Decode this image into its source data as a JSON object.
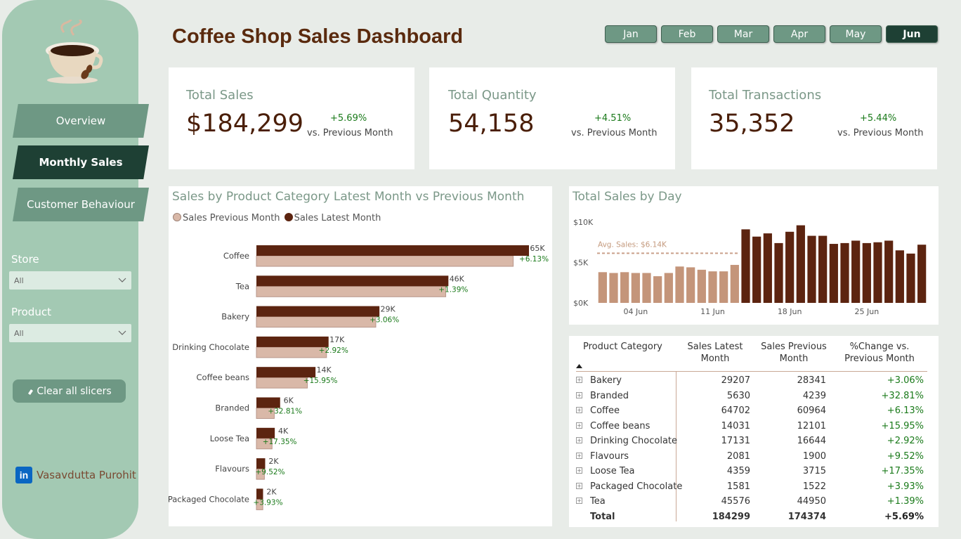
{
  "title": "Coffee Shop Sales Dashboard",
  "nav": {
    "overview": "Overview",
    "monthly": "Monthly Sales",
    "customer": "Customer Behaviour"
  },
  "filters": {
    "store_label": "Store",
    "store_value": "All",
    "product_label": "Product",
    "product_value": "All",
    "clear_label": "Clear all slicers"
  },
  "author": "Vasavdutta Purohit",
  "months": [
    "Jan",
    "Feb",
    "Mar",
    "Apr",
    "May",
    "Jun"
  ],
  "active_month": "Jun",
  "kpis": {
    "sales": {
      "title": "Total Sales",
      "value": "$184,299",
      "change": "+5.69%",
      "sub": "vs. Previous Month"
    },
    "quantity": {
      "title": "Total Quantity",
      "value": "54,158",
      "change": "+4.51%",
      "sub": "vs. Previous Month"
    },
    "transactions": {
      "title": "Total Transactions",
      "value": "35,352",
      "change": "+5.44%",
      "sub": "vs. Previous Month"
    }
  },
  "colors": {
    "latest": "#5c2410",
    "previous": "#d9b8a8",
    "previous_stroke": "#b8968a",
    "day_current": "#5c2410",
    "day_previous": "#c4957a",
    "sidebar": "#a3c9b3",
    "positive": "#1a7a1a"
  },
  "category_chart": {
    "title": "Sales by Product Category Latest Month vs Previous Month",
    "legend_previous": "Sales Previous Month",
    "legend_latest": "Sales Latest Month"
  },
  "day_chart": {
    "title": "Total Sales by Day",
    "avg_label": "Avg. Sales: $6.14K"
  },
  "chart_data": [
    {
      "type": "bar",
      "orientation": "horizontal",
      "title": "Sales by Product Category Latest Month vs Previous Month",
      "categories": [
        "Coffee",
        "Tea",
        "Bakery",
        "Drinking Chocolate",
        "Coffee beans",
        "Branded",
        "Loose Tea",
        "Flavours",
        "Packaged Chocolate"
      ],
      "series": [
        {
          "name": "Sales Latest Month",
          "values": [
            64702,
            45576,
            29207,
            17131,
            14031,
            5630,
            4359,
            2081,
            1581
          ]
        },
        {
          "name": "Sales Previous Month",
          "values": [
            60964,
            44950,
            28341,
            16644,
            12101,
            4239,
            3715,
            1900,
            1522
          ]
        }
      ],
      "data_labels": [
        "65K",
        "46K",
        "29K",
        "17K",
        "14K",
        "6K",
        "4K",
        "2K",
        "2K"
      ],
      "change_labels": [
        "+6.13%",
        "+1.39%",
        "+3.06%",
        "+2.92%",
        "+15.95%",
        "+32.81%",
        "+17.35%",
        "+9.52%",
        "+3.93%"
      ],
      "legend": "top-left"
    },
    {
      "type": "bar",
      "title": "Total Sales by Day",
      "x": [
        1,
        2,
        3,
        4,
        5,
        6,
        7,
        8,
        9,
        10,
        11,
        12,
        13,
        14,
        15,
        16,
        17,
        18,
        19,
        20,
        21,
        22,
        23,
        24,
        25,
        26,
        27,
        28,
        29,
        30
      ],
      "values": [
        3800,
        3700,
        3800,
        3700,
        3700,
        3300,
        3700,
        4500,
        4400,
        4100,
        3900,
        3900,
        4700,
        9100,
        8200,
        8600,
        7400,
        8800,
        9600,
        8300,
        8300,
        7300,
        7400,
        7700,
        7400,
        7500,
        7700,
        6500,
        6100,
        7200
      ],
      "previous_month_days": [
        1,
        2,
        3,
        4,
        5,
        6,
        7,
        8,
        9,
        10,
        11,
        12,
        13
      ],
      "y_ticks": [
        "$0K",
        "$5K",
        "$10K"
      ],
      "ylim": [
        0,
        10000
      ],
      "x_ticks": [
        {
          "day": 4,
          "label": "04 Jun"
        },
        {
          "day": 11,
          "label": "11 Jun"
        },
        {
          "day": 18,
          "label": "18 Jun"
        },
        {
          "day": 25,
          "label": "25 Jun"
        }
      ],
      "avg_line": 6140,
      "avg_label": "Avg. Sales: $6.14K"
    }
  ],
  "table": {
    "headers": {
      "category": "Product Category",
      "latest": "Sales Latest Month",
      "previous": "Sales Previous Month",
      "pct": "%Change vs. Previous Month"
    },
    "rows": [
      {
        "category": "Bakery",
        "latest": "29207",
        "previous": "28341",
        "pct": "+3.06%"
      },
      {
        "category": "Branded",
        "latest": "5630",
        "previous": "4239",
        "pct": "+32.81%"
      },
      {
        "category": "Coffee",
        "latest": "64702",
        "previous": "60964",
        "pct": "+6.13%"
      },
      {
        "category": "Coffee beans",
        "latest": "14031",
        "previous": "12101",
        "pct": "+15.95%"
      },
      {
        "category": "Drinking Chocolate",
        "latest": "17131",
        "previous": "16644",
        "pct": "+2.92%"
      },
      {
        "category": "Flavours",
        "latest": "2081",
        "previous": "1900",
        "pct": "+9.52%"
      },
      {
        "category": "Loose Tea",
        "latest": "4359",
        "previous": "3715",
        "pct": "+17.35%"
      },
      {
        "category": "Packaged Chocolate",
        "latest": "1581",
        "previous": "1522",
        "pct": "+3.93%"
      },
      {
        "category": "Tea",
        "latest": "45576",
        "previous": "44950",
        "pct": "+1.39%"
      }
    ],
    "total": {
      "category": "Total",
      "latest": "184299",
      "previous": "174374",
      "pct": "+5.69%"
    }
  }
}
